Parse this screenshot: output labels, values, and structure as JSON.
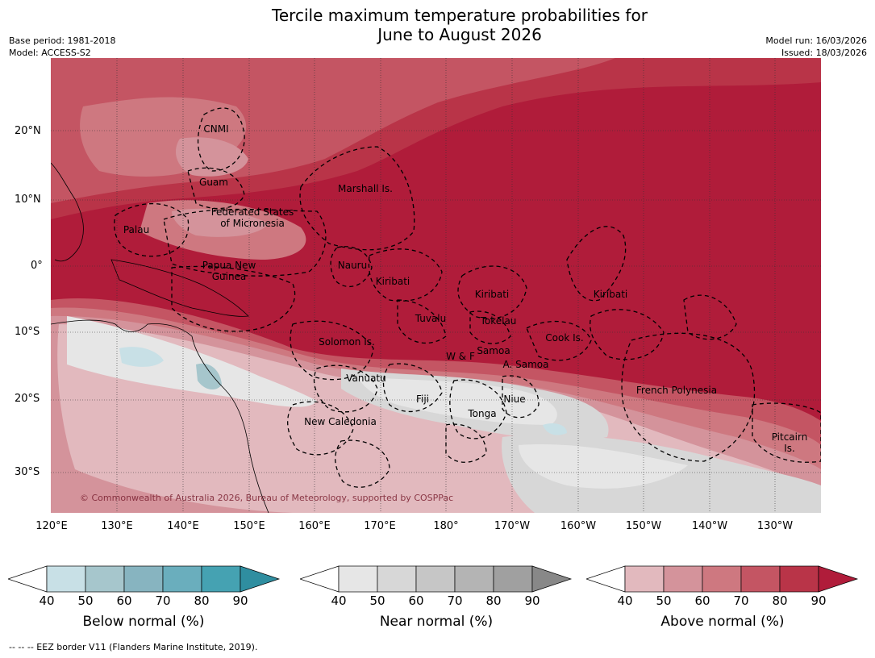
{
  "title_line1": "Tercile maximum temperature probabilities for",
  "title_line2": "June to August 2026",
  "base_period": "Base period: 1981-2018",
  "model": "Model: ACCESS-S2",
  "model_run": "Model run: 16/03/2026",
  "issued": "Issued: 18/03/2026",
  "copyright": "© Commonwealth of Australia 2026, Bureau of Meteorology, supported by COSPPac",
  "footnote": "--  --  -- EEZ border V11 (Flanders Marine Institute, 2019).",
  "lat_labels": [
    "20°N",
    "10°N",
    "0°",
    "10°S",
    "20°S",
    "30°S"
  ],
  "lon_labels": [
    "120°E",
    "130°E",
    "140°E",
    "150°E",
    "160°E",
    "170°E",
    "180°",
    "170°W",
    "160°W",
    "150°W",
    "140°W",
    "130°W"
  ],
  "regions": {
    "cnmi": "CNMI",
    "guam": "Guam",
    "marshall": "Marshall Is.",
    "fsm1": "Federated States",
    "fsm2": "of Micronesia",
    "palau": "Palau",
    "png1": "Papua New",
    "png2": "Guinea",
    "nauru": "Nauru",
    "kiribati_w": "Kiribati",
    "kiribati_c": "Kiribati",
    "kiribati_e": "Kiribati",
    "tuvalu": "Tuvalu",
    "tokelau": "Tokelau",
    "cook": "Cook Is.",
    "solomon": "Solomon Is.",
    "wf": "W & F",
    "samoa": "Samoa",
    "asamoa": "A. Samoa",
    "vanuatu": "Vanuatu",
    "fiji": "Fiji",
    "niue": "Niue",
    "tonga": "Tonga",
    "frenchpoly": "French Polynesia",
    "newcal": "New Caledonia",
    "pitcairn1": "Pitcairn",
    "pitcairn2": "Is."
  },
  "colorbars": [
    {
      "title": "Below normal (%)",
      "ticks": [
        "40",
        "50",
        "60",
        "70",
        "80",
        "90"
      ],
      "colors": [
        "#c8e0e6",
        "#a6c6cc",
        "#87b4c0",
        "#6aaebd",
        "#45a2b2",
        "#2f8ea0"
      ]
    },
    {
      "title": "Near normal (%)",
      "ticks": [
        "40",
        "50",
        "60",
        "70",
        "80",
        "90"
      ],
      "colors": [
        "#e6e6e6",
        "#d7d7d7",
        "#c6c6c6",
        "#b4b4b4",
        "#a0a0a0",
        "#888888"
      ]
    },
    {
      "title": "Above normal (%)",
      "ticks": [
        "40",
        "50",
        "60",
        "70",
        "80",
        "90"
      ],
      "colors": [
        "#e2b9be",
        "#d4939b",
        "#ce7880",
        "#c45563",
        "#b93448",
        "#b01c3a"
      ]
    }
  ]
}
